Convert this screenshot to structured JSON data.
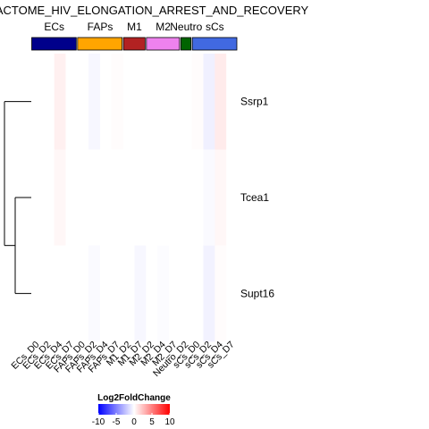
{
  "chart_data": {
    "type": "heatmap",
    "title": "ACTOME_HIV_ELONGATION_ARREST_AND_RECOVERY",
    "rows": [
      "Ssrp1",
      "Tcea1",
      "Supt16"
    ],
    "columns": [
      "ECs_D0",
      "ECs_D2",
      "ECs_D4",
      "ECs_D7",
      "FAPs_D0",
      "FAPs_D2",
      "FAPs_D4",
      "FAPs_D7",
      "M1_D2",
      "M1_D7",
      "M2_D2",
      "M2_D4",
      "M2_D7",
      "Neutro_D2",
      "sCs_D0",
      "sCs_D2",
      "sCs_D4",
      "sCs_D7"
    ],
    "column_groups": [
      {
        "name": "ECs",
        "color": "#00008B",
        "start": 0,
        "span": 4
      },
      {
        "name": "FAPs",
        "color": "#FFA500",
        "start": 4,
        "span": 4
      },
      {
        "name": "M1",
        "color": "#B22222",
        "start": 8,
        "span": 2
      },
      {
        "name": "M2",
        "color": "#EE82EE",
        "start": 10,
        "span": 3
      },
      {
        "name": "Neutro",
        "color": "#006400",
        "start": 13,
        "span": 1
      },
      {
        "name": "sCs",
        "color": "#4169E1",
        "start": 14,
        "span": 4
      }
    ],
    "values": [
      [
        0,
        0,
        0.6,
        0,
        0,
        -0.3,
        0,
        0.1,
        0,
        0,
        0,
        0,
        0,
        0,
        0.1,
        -0.6,
        0.8,
        0
      ],
      [
        0,
        0,
        0.3,
        0,
        0,
        0,
        0,
        0,
        0,
        0,
        0,
        0,
        0,
        0,
        0,
        -0.2,
        0.3,
        0
      ],
      [
        0,
        0,
        0,
        0,
        0,
        -0.2,
        0,
        0,
        0,
        -0.3,
        0,
        -0.1,
        0,
        0,
        0,
        -0.5,
        0.1,
        0
      ]
    ],
    "dendrogram": "((Tcea1,Supt16),Ssrp1)",
    "legend": {
      "title": "Log2FoldChange",
      "ticks": [
        -10,
        -5,
        0,
        5,
        10
      ],
      "colors": [
        "#0000FF",
        "#FFFFFF",
        "#FF0000"
      ],
      "range": [
        -10,
        10
      ]
    }
  }
}
